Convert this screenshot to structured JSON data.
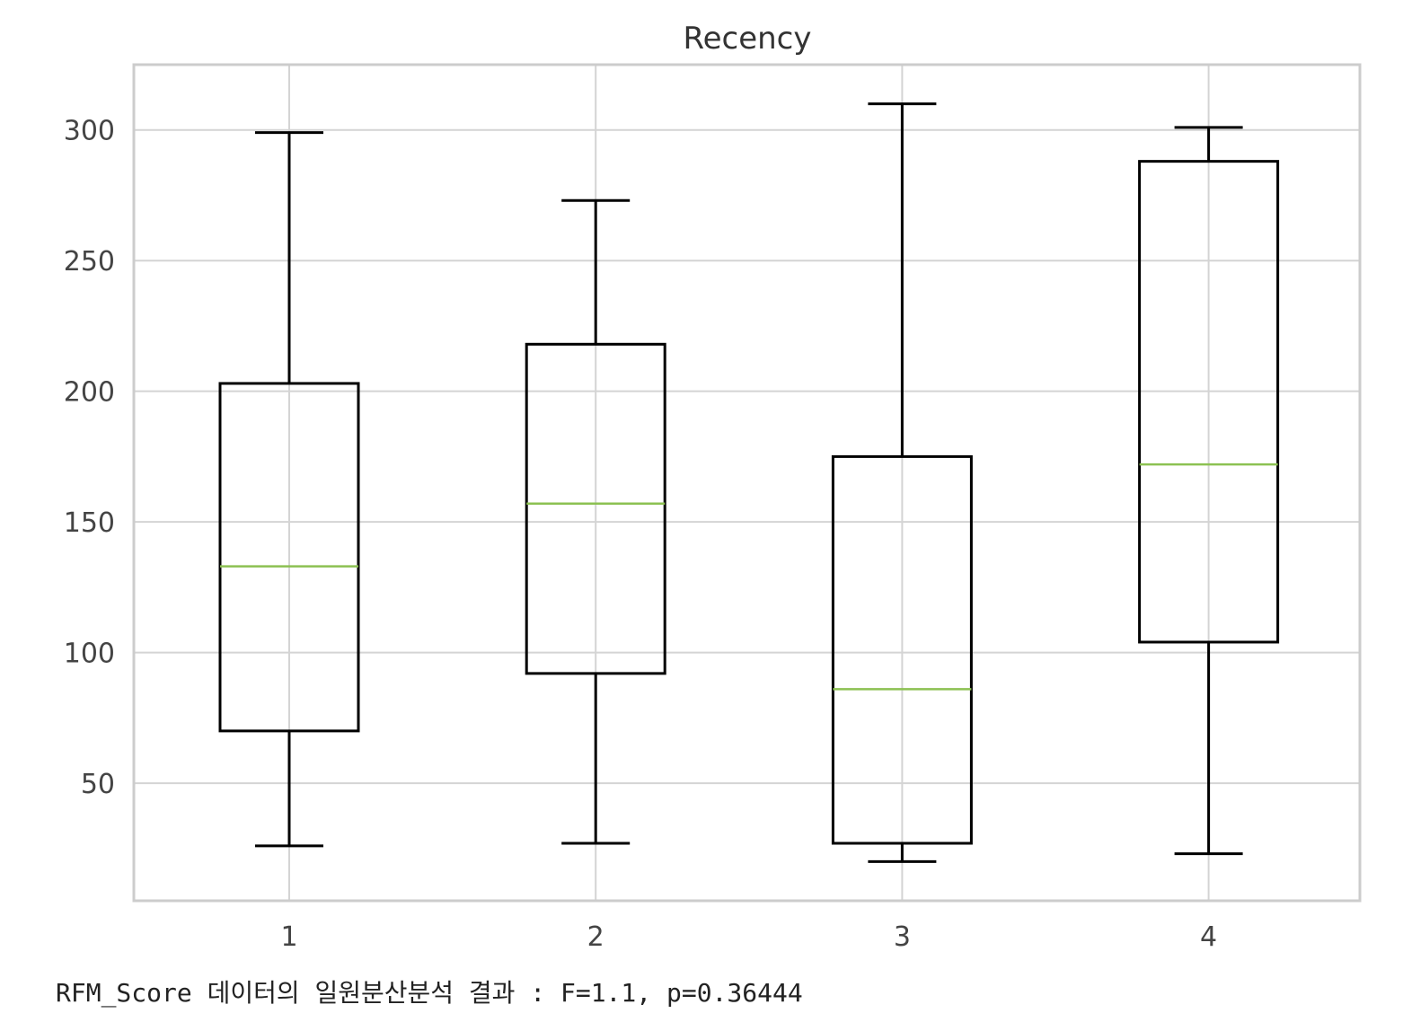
{
  "chart_data": {
    "type": "box",
    "title": "Recency",
    "xlabel": "",
    "ylabel": "",
    "categories": [
      "1",
      "2",
      "3",
      "4"
    ],
    "boxes": [
      {
        "category": "1",
        "whisker_low": 26,
        "q1": 70,
        "median": 133,
        "q3": 203,
        "whisker_high": 299
      },
      {
        "category": "2",
        "whisker_low": 27,
        "q1": 92,
        "median": 157,
        "q3": 218,
        "whisker_high": 273
      },
      {
        "category": "3",
        "whisker_low": 20,
        "q1": 27,
        "median": 86,
        "q3": 175,
        "whisker_high": 310
      },
      {
        "category": "4",
        "whisker_low": 23,
        "q1": 104,
        "median": 172,
        "q3": 288,
        "whisker_high": 301
      }
    ],
    "yticks": [
      50,
      100,
      150,
      200,
      250,
      300
    ],
    "ylim": [
      5,
      325
    ],
    "grid": true,
    "colors": {
      "box": "#000000",
      "median": "#8cc152",
      "grid": "#d4d4d4",
      "frame": "#cccccc"
    }
  },
  "caption": {
    "text": "RFM_Score 데이터의 일원분산분석 결과 : F=1.1, p=0.36444"
  }
}
